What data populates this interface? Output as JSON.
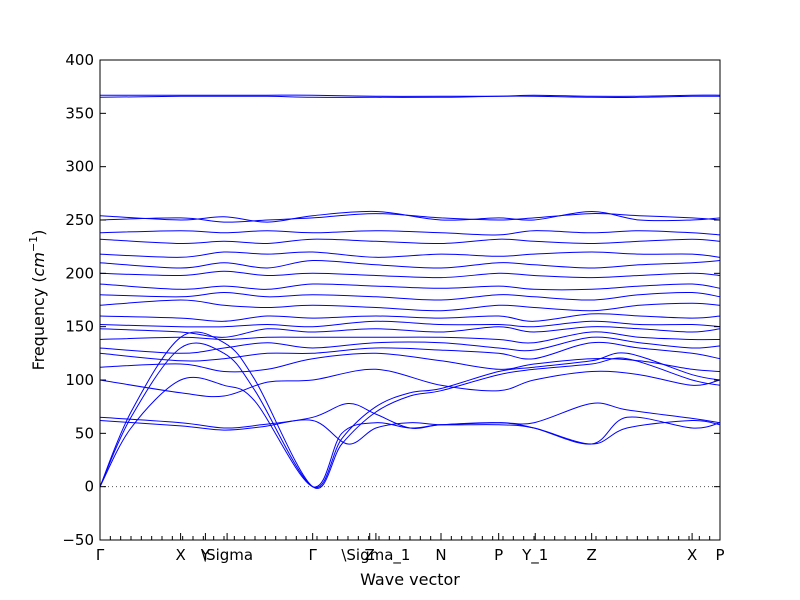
{
  "chart_data": {
    "type": "line",
    "xlabel": "Wave vector",
    "ylabel": "Frequency (cm^-1)",
    "ylabel_parts": {
      "main": "Frequency (",
      "unit_base": "cm",
      "unit_exp": "−1",
      "close": ")"
    },
    "ylim": [
      -50,
      400
    ],
    "yticks": [
      -50,
      0,
      50,
      100,
      150,
      200,
      250,
      300,
      350,
      400
    ],
    "xlim": [
      0,
      1
    ],
    "xticks": [
      {
        "x": 0.0,
        "label": "Γ"
      },
      {
        "x": 0.13,
        "label": "X"
      },
      {
        "x": 0.17,
        "label": "Y"
      },
      {
        "x": 0.205,
        "label": "\\Sigma"
      },
      {
        "x": 0.343,
        "label": "Γ"
      },
      {
        "x": 0.435,
        "label": "Z"
      },
      {
        "x": 0.445,
        "label": "\\Sigma_1"
      },
      {
        "x": 0.55,
        "label": "N"
      },
      {
        "x": 0.643,
        "label": "P"
      },
      {
        "x": 0.702,
        "label": "Y_1"
      },
      {
        "x": 0.793,
        "label": "Z"
      },
      {
        "x": 0.955,
        "label": "X"
      },
      {
        "x": 1.0,
        "label": "P"
      }
    ],
    "zero_line": {
      "y": 0,
      "style": "dotted"
    },
    "series_color": "#0000ff",
    "series": [
      {
        "x": [
          0,
          0.05,
          0.13,
          0.2,
          0.25,
          0.343,
          0.39,
          0.445,
          0.5,
          0.55,
          0.643,
          0.7,
          0.793,
          0.85,
          0.955,
          1.0
        ],
        "values": [
          0,
          70,
          140,
          135,
          100,
          0,
          40,
          70,
          85,
          90,
          105,
          110,
          115,
          120,
          100,
          95
        ]
      },
      {
        "x": [
          0,
          0.05,
          0.13,
          0.2,
          0.25,
          0.343,
          0.39,
          0.445,
          0.5,
          0.55,
          0.643,
          0.7,
          0.793,
          0.85,
          0.955,
          1.0
        ],
        "values": [
          0,
          65,
          130,
          125,
          90,
          0,
          45,
          75,
          88,
          92,
          108,
          112,
          118,
          125,
          105,
          100
        ]
      },
      {
        "x": [
          0,
          0.05,
          0.13,
          0.2,
          0.25,
          0.343,
          0.39,
          0.445,
          0.5,
          0.55,
          0.643,
          0.7,
          0.793,
          0.85,
          0.955,
          1.0
        ],
        "values": [
          0,
          55,
          100,
          95,
          80,
          0,
          50,
          60,
          55,
          58,
          60,
          55,
          40,
          65,
          55,
          60
        ]
      },
      {
        "x": [
          0,
          0.13,
          0.2,
          0.26,
          0.343,
          0.4,
          0.445,
          0.5,
          0.55,
          0.643,
          0.7,
          0.793,
          0.85,
          0.955,
          1.0
        ],
        "values": [
          65,
          60,
          55,
          58,
          65,
          78,
          68,
          55,
          58,
          60,
          60,
          78,
          72,
          64,
          60
        ]
      },
      {
        "x": [
          0,
          0.13,
          0.2,
          0.26,
          0.343,
          0.4,
          0.445,
          0.5,
          0.55,
          0.643,
          0.7,
          0.793,
          0.85,
          0.955,
          1.0
        ],
        "values": [
          62,
          57,
          53,
          56,
          62,
          40,
          55,
          60,
          58,
          58,
          55,
          40,
          55,
          62,
          58
        ]
      },
      {
        "x": [
          0,
          0.13,
          0.2,
          0.27,
          0.343,
          0.445,
          0.55,
          0.643,
          0.7,
          0.793,
          0.87,
          0.955,
          1.0
        ],
        "values": [
          100,
          88,
          85,
          98,
          100,
          110,
          95,
          90,
          100,
          108,
          105,
          95,
          100
        ]
      },
      {
        "x": [
          0,
          0.13,
          0.2,
          0.27,
          0.343,
          0.445,
          0.55,
          0.643,
          0.7,
          0.793,
          0.87,
          0.955,
          1.0
        ],
        "values": [
          112,
          115,
          108,
          110,
          120,
          125,
          118,
          110,
          115,
          120,
          118,
          110,
          108
        ]
      },
      {
        "x": [
          0,
          0.13,
          0.2,
          0.27,
          0.343,
          0.445,
          0.55,
          0.643,
          0.7,
          0.793,
          0.87,
          0.955,
          1.0
        ],
        "values": [
          125,
          118,
          120,
          125,
          125,
          130,
          128,
          125,
          120,
          135,
          130,
          125,
          120
        ]
      },
      {
        "x": [
          0,
          0.13,
          0.2,
          0.27,
          0.343,
          0.445,
          0.55,
          0.643,
          0.7,
          0.793,
          0.87,
          0.955,
          1.0
        ],
        "values": [
          130,
          125,
          130,
          135,
          130,
          135,
          135,
          130,
          128,
          140,
          135,
          130,
          132
        ]
      },
      {
        "x": [
          0,
          0.13,
          0.2,
          0.27,
          0.343,
          0.445,
          0.55,
          0.643,
          0.7,
          0.793,
          0.87,
          0.955,
          1.0
        ],
        "values": [
          138,
          140,
          138,
          140,
          140,
          140,
          140,
          138,
          135,
          145,
          140,
          138,
          138
        ]
      },
      {
        "x": [
          0,
          0.13,
          0.2,
          0.27,
          0.343,
          0.445,
          0.55,
          0.643,
          0.7,
          0.793,
          0.87,
          0.955,
          1.0
        ],
        "values": [
          148,
          145,
          140,
          148,
          145,
          148,
          145,
          150,
          145,
          150,
          148,
          145,
          148
        ]
      },
      {
        "x": [
          0,
          0.13,
          0.2,
          0.27,
          0.343,
          0.445,
          0.55,
          0.643,
          0.7,
          0.793,
          0.87,
          0.955,
          1.0
        ],
        "values": [
          152,
          150,
          150,
          152,
          150,
          155,
          152,
          152,
          150,
          155,
          152,
          152,
          150
        ]
      },
      {
        "x": [
          0,
          0.13,
          0.2,
          0.27,
          0.343,
          0.445,
          0.55,
          0.643,
          0.7,
          0.793,
          0.87,
          0.955,
          1.0
        ],
        "values": [
          160,
          158,
          155,
          160,
          158,
          160,
          158,
          160,
          155,
          162,
          160,
          158,
          160
        ]
      },
      {
        "x": [
          0,
          0.13,
          0.2,
          0.27,
          0.343,
          0.445,
          0.55,
          0.643,
          0.7,
          0.793,
          0.87,
          0.955,
          1.0
        ],
        "values": [
          170,
          175,
          170,
          168,
          170,
          168,
          165,
          170,
          168,
          165,
          170,
          172,
          170
        ]
      },
      {
        "x": [
          0,
          0.13,
          0.2,
          0.27,
          0.343,
          0.445,
          0.55,
          0.643,
          0.7,
          0.793,
          0.87,
          0.955,
          1.0
        ],
        "values": [
          180,
          178,
          182,
          178,
          180,
          178,
          175,
          180,
          178,
          175,
          180,
          182,
          178
        ]
      },
      {
        "x": [
          0,
          0.13,
          0.2,
          0.27,
          0.343,
          0.445,
          0.55,
          0.643,
          0.7,
          0.793,
          0.87,
          0.955,
          1.0
        ],
        "values": [
          190,
          185,
          188,
          185,
          190,
          188,
          186,
          188,
          185,
          185,
          188,
          190,
          186
        ]
      },
      {
        "x": [
          0,
          0.13,
          0.2,
          0.27,
          0.343,
          0.445,
          0.55,
          0.643,
          0.7,
          0.793,
          0.87,
          0.955,
          1.0
        ],
        "values": [
          200,
          198,
          202,
          198,
          200,
          198,
          196,
          200,
          198,
          196,
          198,
          200,
          198
        ]
      },
      {
        "x": [
          0,
          0.13,
          0.2,
          0.27,
          0.343,
          0.445,
          0.55,
          0.643,
          0.7,
          0.793,
          0.87,
          0.955,
          1.0
        ],
        "values": [
          210,
          205,
          210,
          205,
          212,
          208,
          205,
          210,
          208,
          205,
          208,
          210,
          212
        ]
      },
      {
        "x": [
          0,
          0.13,
          0.2,
          0.27,
          0.343,
          0.445,
          0.55,
          0.643,
          0.7,
          0.793,
          0.87,
          0.955,
          1.0
        ],
        "values": [
          218,
          215,
          220,
          218,
          220,
          215,
          218,
          216,
          218,
          220,
          218,
          218,
          215
        ]
      },
      {
        "x": [
          0,
          0.13,
          0.2,
          0.27,
          0.343,
          0.445,
          0.55,
          0.643,
          0.7,
          0.793,
          0.87,
          0.955,
          1.0
        ],
        "values": [
          232,
          228,
          230,
          228,
          232,
          230,
          228,
          232,
          230,
          228,
          230,
          232,
          230
        ]
      },
      {
        "x": [
          0,
          0.13,
          0.2,
          0.27,
          0.343,
          0.445,
          0.55,
          0.643,
          0.7,
          0.793,
          0.87,
          0.955,
          1.0
        ],
        "values": [
          238,
          240,
          238,
          240,
          238,
          240,
          238,
          236,
          240,
          238,
          240,
          238,
          236
        ]
      },
      {
        "x": [
          0,
          0.13,
          0.2,
          0.27,
          0.343,
          0.445,
          0.55,
          0.643,
          0.7,
          0.793,
          0.87,
          0.955,
          1.0
        ],
        "values": [
          250,
          252,
          248,
          250,
          252,
          256,
          252,
          250,
          252,
          256,
          254,
          252,
          250
        ]
      },
      {
        "x": [
          0,
          0.13,
          0.2,
          0.27,
          0.343,
          0.445,
          0.55,
          0.643,
          0.7,
          0.793,
          0.87,
          0.955,
          1.0
        ],
        "values": [
          254,
          250,
          253,
          248,
          254,
          258,
          250,
          252,
          250,
          258,
          250,
          250,
          252
        ]
      },
      {
        "x": [
          0,
          0.13,
          0.2,
          0.27,
          0.343,
          0.445,
          0.55,
          0.643,
          0.7,
          0.793,
          0.87,
          0.955,
          1.0
        ],
        "values": [
          365,
          366,
          366,
          366,
          365,
          365,
          365,
          366,
          366,
          365,
          365,
          366,
          366
        ]
      },
      {
        "x": [
          0,
          0.13,
          0.2,
          0.27,
          0.343,
          0.445,
          0.55,
          0.643,
          0.7,
          0.793,
          0.87,
          0.955,
          1.0
        ],
        "values": [
          367,
          367,
          367,
          367,
          367,
          366,
          366,
          366,
          367,
          366,
          366,
          367,
          367
        ]
      }
    ]
  }
}
